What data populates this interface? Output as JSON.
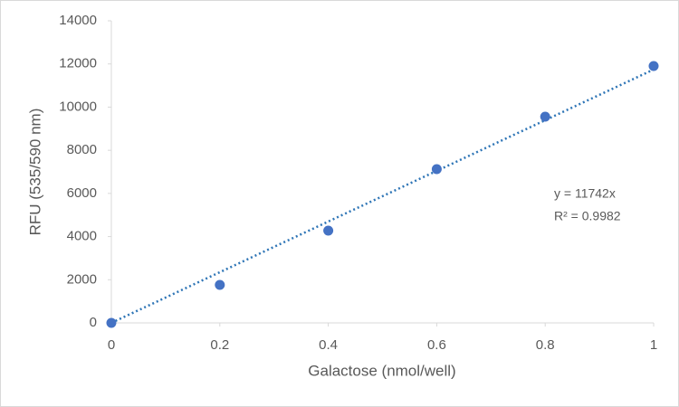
{
  "chart_data": {
    "type": "scatter",
    "x_label": "Galactose (nmol/well)",
    "y_label": "RFU (535/590 nm)",
    "series": [
      {
        "name": "Galactose",
        "color": "#4472c4",
        "x": [
          0,
          0.2,
          0.4,
          0.6,
          0.8,
          1
        ],
        "values": [
          0,
          1760,
          4275,
          7125,
          9557,
          11904
        ]
      }
    ],
    "trendline": {
      "slope": 11742,
      "label": "y = 11742x",
      "r2_label": "R² = 0.9982",
      "color": "#2e75b6"
    },
    "xlim": [
      0,
      1
    ],
    "xticks": [
      0,
      0.2,
      0.4,
      0.6,
      0.8,
      1
    ],
    "ylim": [
      0,
      14000
    ],
    "yticks": [
      0,
      2000,
      4000,
      6000,
      8000,
      10000,
      12000,
      14000
    ],
    "grid": false
  }
}
